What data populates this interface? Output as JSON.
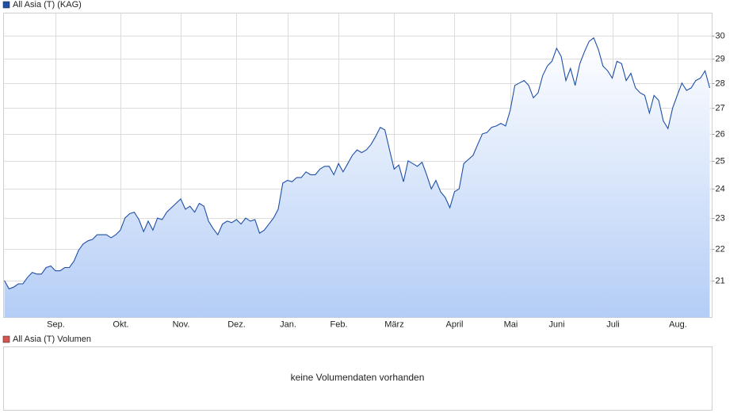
{
  "chart_data": [
    {
      "type": "line",
      "log_scale": true,
      "grid": true,
      "ylim": [
        19.9,
        31.0
      ],
      "yticks": [
        21,
        22,
        23,
        24,
        25,
        26,
        27,
        28,
        29,
        30
      ],
      "xticks": [
        {
          "value": 11,
          "label": "Sep."
        },
        {
          "value": 25,
          "label": "Okt."
        },
        {
          "value": 38,
          "label": "Nov."
        },
        {
          "value": 50,
          "label": "Dez."
        },
        {
          "value": 61,
          "label": "Jan."
        },
        {
          "value": 72,
          "label": "Feb."
        },
        {
          "value": 84,
          "label": "März"
        },
        {
          "value": 97,
          "label": "April"
        },
        {
          "value": 109,
          "label": "Mai"
        },
        {
          "value": 119,
          "label": "Juni"
        },
        {
          "value": 131,
          "label": "Juli"
        },
        {
          "value": 145,
          "label": "Aug."
        }
      ],
      "series": [
        {
          "name": "All Asia (T) (KAG)",
          "color": "#1f4fa8",
          "values": [
            21.0,
            20.75,
            20.8,
            20.9,
            20.9,
            21.1,
            21.25,
            21.2,
            21.2,
            21.4,
            21.45,
            21.3,
            21.3,
            21.4,
            21.4,
            21.6,
            21.95,
            22.15,
            22.25,
            22.3,
            22.45,
            22.45,
            22.45,
            22.35,
            22.45,
            22.6,
            23.0,
            23.15,
            23.2,
            22.95,
            22.55,
            22.9,
            22.6,
            23.0,
            22.95,
            23.2,
            23.35,
            23.5,
            23.65,
            23.3,
            23.4,
            23.2,
            23.5,
            23.4,
            22.9,
            22.65,
            22.45,
            22.8,
            22.9,
            22.85,
            22.95,
            22.8,
            23.0,
            22.9,
            22.95,
            22.5,
            22.6,
            22.8,
            23.0,
            23.3,
            24.2,
            24.3,
            24.25,
            24.4,
            24.4,
            24.6,
            24.5,
            24.5,
            24.7,
            24.8,
            24.8,
            24.5,
            24.9,
            24.6,
            24.9,
            25.2,
            25.4,
            25.3,
            25.4,
            25.6,
            25.9,
            26.25,
            26.15,
            25.4,
            24.7,
            24.85,
            24.25,
            25.0,
            24.9,
            24.8,
            24.95,
            24.5,
            24.0,
            24.3,
            23.9,
            23.7,
            23.35,
            23.9,
            24.0,
            24.9,
            25.05,
            25.2,
            25.6,
            26.0,
            26.05,
            26.25,
            26.3,
            26.4,
            26.3,
            26.9,
            27.9,
            28.0,
            28.1,
            27.9,
            27.4,
            27.6,
            28.3,
            28.7,
            28.9,
            29.45,
            29.1,
            28.1,
            28.6,
            27.9,
            28.8,
            29.3,
            29.75,
            29.9,
            29.4,
            28.7,
            28.5,
            28.2,
            28.9,
            28.8,
            28.1,
            28.4,
            27.8,
            27.6,
            27.5,
            26.8,
            27.5,
            27.3,
            26.5,
            26.2,
            27.0,
            27.5,
            28.0,
            27.7,
            27.8,
            28.1,
            28.2,
            28.5,
            27.8
          ]
        }
      ]
    },
    {
      "type": "bar",
      "series": [
        {
          "name": "All Asia (T) Volumen",
          "color": "#d9534f"
        }
      ],
      "message": "keine Volumendaten vorhanden"
    }
  ]
}
